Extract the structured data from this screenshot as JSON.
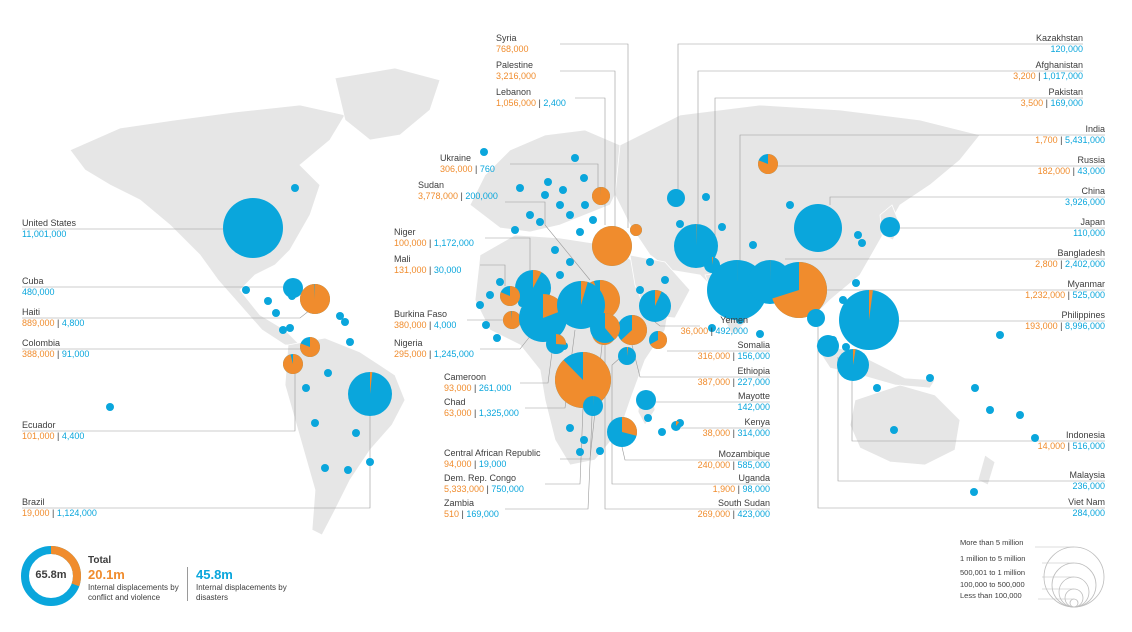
{
  "colors": {
    "conflict": "#f08c2d",
    "disaster": "#0aa6dc",
    "land": "#e6e6e6",
    "label_text": "#3d3d3d",
    "leader": "#9a9a9a"
  },
  "countries": [
    {
      "id": "syria",
      "name": "Syria",
      "conflict": "768,000",
      "disaster": ""
    },
    {
      "id": "palestine",
      "name": "Palestine",
      "conflict": "3,216,000",
      "disaster": ""
    },
    {
      "id": "lebanon",
      "name": "Lebanon",
      "conflict": "1,056,000",
      "disaster": "2,400"
    },
    {
      "id": "ukraine",
      "name": "Ukraine",
      "conflict": "306,000",
      "disaster": "760"
    },
    {
      "id": "sudan",
      "name": "Sudan",
      "conflict": "3,778,000",
      "disaster": "200,000"
    },
    {
      "id": "niger",
      "name": "Niger",
      "conflict": "100,000",
      "disaster": "1,172,000"
    },
    {
      "id": "mali",
      "name": "Mali",
      "conflict": "131,000",
      "disaster": "30,000"
    },
    {
      "id": "burkina",
      "name": "Burkina Faso",
      "conflict": "380,000",
      "disaster": "4,000"
    },
    {
      "id": "nigeria",
      "name": "Nigeria",
      "conflict": "295,000",
      "disaster": "1,245,000"
    },
    {
      "id": "cameroon",
      "name": "Cameroon",
      "conflict": "93,000",
      "disaster": "261,000"
    },
    {
      "id": "chad",
      "name": "Chad",
      "conflict": "63,000",
      "disaster": "1,325,000"
    },
    {
      "id": "car",
      "name": "Central African Republic",
      "conflict": "94,000",
      "disaster": "19,000"
    },
    {
      "id": "drc",
      "name": "Dem. Rep. Congo",
      "conflict": "5,333,000",
      "disaster": "750,000"
    },
    {
      "id": "zambia",
      "name": "Zambia",
      "conflict": "510",
      "disaster": "169,000"
    },
    {
      "id": "kazakhstan",
      "name": "Kazakhstan",
      "conflict": "",
      "disaster": "120,000"
    },
    {
      "id": "afghanistan",
      "name": "Afghanistan",
      "conflict": "3,200",
      "disaster": "1,017,000"
    },
    {
      "id": "pakistan",
      "name": "Pakistan",
      "conflict": "3,500",
      "disaster": "169,000"
    },
    {
      "id": "india",
      "name": "India",
      "conflict": "1,700",
      "disaster": "5,431,000"
    },
    {
      "id": "russia",
      "name": "Russia",
      "conflict": "182,000",
      "disaster": "43,000"
    },
    {
      "id": "china",
      "name": "China",
      "conflict": "",
      "disaster": "3,926,000"
    },
    {
      "id": "japan",
      "name": "Japan",
      "conflict": "",
      "disaster": "110,000"
    },
    {
      "id": "bangladesh",
      "name": "Bangladesh",
      "conflict": "2,800",
      "disaster": "2,402,000"
    },
    {
      "id": "myanmar",
      "name": "Myanmar",
      "conflict": "1,232,000",
      "disaster": "525,000"
    },
    {
      "id": "philippines",
      "name": "Philippines",
      "conflict": "193,000",
      "disaster": "8,996,000"
    },
    {
      "id": "yemen",
      "name": "Yemen",
      "conflict": "36,000",
      "disaster": "492,000"
    },
    {
      "id": "somalia",
      "name": "Somalia",
      "conflict": "316,000",
      "disaster": "156,000"
    },
    {
      "id": "ethiopia",
      "name": "Ethiopia",
      "conflict": "387,000",
      "disaster": "227,000"
    },
    {
      "id": "mayotte",
      "name": "Mayotte",
      "conflict": "",
      "disaster": "142,000"
    },
    {
      "id": "kenya",
      "name": "Kenya",
      "conflict": "38,000",
      "disaster": "314,000"
    },
    {
      "id": "mozambique",
      "name": "Mozambique",
      "conflict": "240,000",
      "disaster": "585,000"
    },
    {
      "id": "uganda",
      "name": "Uganda",
      "conflict": "1,900",
      "disaster": "98,000"
    },
    {
      "id": "southsudan",
      "name": "South Sudan",
      "conflict": "269,000",
      "disaster": "423,000"
    },
    {
      "id": "indonesia",
      "name": "Indonesia",
      "conflict": "14,000",
      "disaster": "516,000"
    },
    {
      "id": "malaysia",
      "name": "Malaysia",
      "conflict": "",
      "disaster": "236,000"
    },
    {
      "id": "vietnam",
      "name": "Viet Nam",
      "conflict": "",
      "disaster": "284,000"
    },
    {
      "id": "us",
      "name": "United States",
      "conflict": "",
      "disaster": "11,001,000"
    },
    {
      "id": "cuba",
      "name": "Cuba",
      "conflict": "",
      "disaster": "480,000"
    },
    {
      "id": "haiti",
      "name": "Haiti",
      "conflict": "889,000",
      "disaster": "4,800"
    },
    {
      "id": "colombia",
      "name": "Colombia",
      "conflict": "388,000",
      "disaster": "91,000"
    },
    {
      "id": "ecuador",
      "name": "Ecuador",
      "conflict": "101,000",
      "disaster": "4,400"
    },
    {
      "id": "brazil",
      "name": "Brazil",
      "conflict": "19,000",
      "disaster": "1,124,000"
    }
  ],
  "totals": {
    "overall": "65.8m",
    "title": "Total",
    "conflict_value": "20.1m",
    "conflict_desc": "Internal displacements by conflict and violence",
    "disaster_value": "45.8m",
    "disaster_desc": "Internal displacements by disasters",
    "conflict_share": 0.305
  },
  "size_legend": [
    "More than 5 million",
    "1 million to 5 million",
    "500,001 to 1 million",
    "100,000 to 500,000",
    "Less than 100,000"
  ]
}
